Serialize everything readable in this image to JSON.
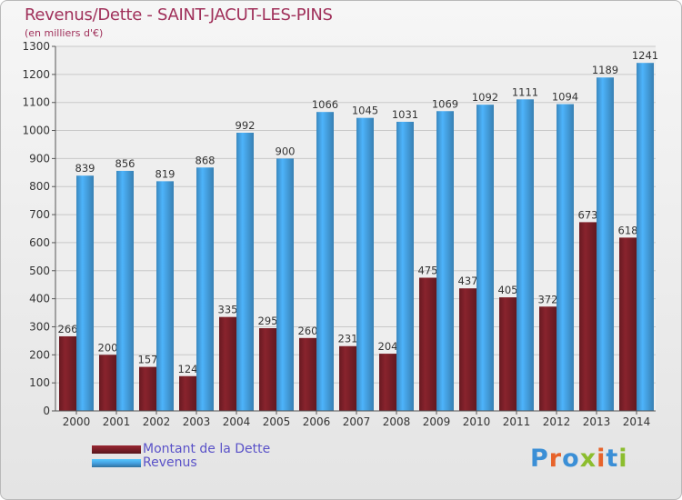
{
  "header": {
    "title": "Revenus/Dette - SAINT-JACUT-LES-PINS",
    "subtitle": "(en milliers d'€)"
  },
  "legend": {
    "items": [
      {
        "label": "Montant de la Dette",
        "color": "#7a1f28"
      },
      {
        "label": "Revenus",
        "color": "#45a0e0"
      }
    ]
  },
  "logo": {
    "text": "Proxiti",
    "colors": [
      "#3b8fd6",
      "#e7632a",
      "#3b8fd6",
      "#8cbd2e",
      "#e7632a",
      "#3b8fd6",
      "#8cbd2e"
    ]
  },
  "chart_data": {
    "type": "bar",
    "title": "Revenus/Dette - SAINT-JACUT-LES-PINS",
    "subtitle": "(en milliers d'€)",
    "xlabel": "",
    "ylabel": "",
    "ylim": [
      0,
      1300
    ],
    "yticks": [
      0,
      100,
      200,
      300,
      400,
      500,
      600,
      700,
      800,
      900,
      1000,
      1100,
      1200,
      1300
    ],
    "grid": true,
    "legend_position": "bottom-left",
    "categories": [
      "2000",
      "2001",
      "2002",
      "2003",
      "2004",
      "2005",
      "2006",
      "2007",
      "2008",
      "2009",
      "2010",
      "2011",
      "2012",
      "2013",
      "2014"
    ],
    "series": [
      {
        "name": "Montant de la Dette",
        "color": "#7a1f28",
        "values": [
          266,
          200,
          157,
          124,
          335,
          295,
          260,
          231,
          204,
          475,
          437,
          405,
          372,
          673,
          618
        ]
      },
      {
        "name": "Revenus",
        "color": "#45a0e0",
        "values": [
          839,
          856,
          819,
          868,
          992,
          900,
          1066,
          1045,
          1031,
          1069,
          1092,
          1111,
          1094,
          1189,
          1241
        ]
      }
    ]
  }
}
